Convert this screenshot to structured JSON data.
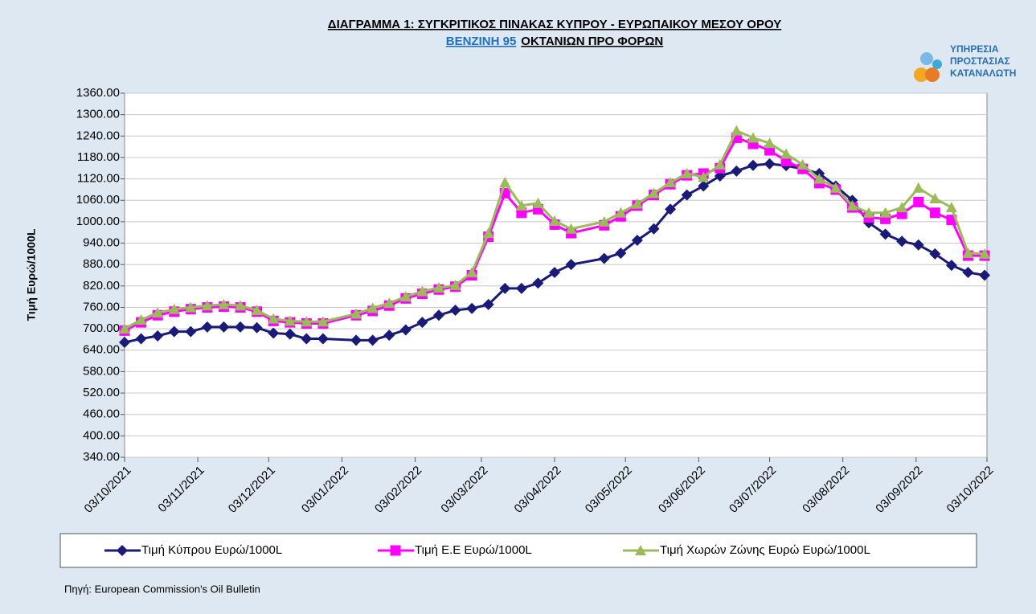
{
  "chart_data": {
    "type": "line",
    "title_line1": "ΔΙΑΓΡΑΜΜΑ 1: ΣΥΓΚΡΙΤΙΚΟΣ ΠΙΝΑΚΑΣ ΚΥΠΡΟΥ - ΕΥΡΩΠΑΙΚΟΥ ΜΕΣΟΥ ΟΡΟΥ",
    "title_line2_highlight": "ΒΕΝΖΙΝΗ 95",
    "title_line2_rest": "ΟΚΤΑΝΙΩΝ ΠΡΟ ΦΟΡΩΝ",
    "logo_text": [
      "ΥΠΗΡΕΣΙΑ",
      "ΠΡΟΣΤΑΣΙΑΣ",
      "ΚΑΤΑΝΑΛΩΤΗ"
    ],
    "y_label": "Τιμή Ευρώ/1000L",
    "source": "Πηγή: European Commission's Oil Bulletin",
    "x": [
      "03/10/2021",
      "10/10/2021",
      "17/10/2021",
      "24/10/2021",
      "31/10/2021",
      "07/11/2021",
      "14/11/2021",
      "21/11/2021",
      "28/11/2021",
      "05/12/2021",
      "12/12/2021",
      "19/12/2021",
      "26/12/2021",
      "09/01/2022",
      "16/01/2022",
      "23/01/2022",
      "30/01/2022",
      "06/02/2022",
      "13/02/2022",
      "20/02/2022",
      "27/02/2022",
      "06/03/2022",
      "13/03/2022",
      "20/03/2022",
      "27/03/2022",
      "03/04/2022",
      "10/04/2022",
      "24/04/2022",
      "01/05/2022",
      "08/05/2022",
      "15/05/2022",
      "22/05/2022",
      "29/05/2022",
      "05/06/2022",
      "12/06/2022",
      "19/06/2022",
      "26/06/2022",
      "03/07/2022",
      "10/07/2022",
      "17/07/2022",
      "24/07/2022",
      "31/07/2022",
      "07/08/2022",
      "14/08/2022",
      "21/08/2022",
      "28/08/2022",
      "04/09/2022",
      "11/09/2022",
      "18/09/2022",
      "25/09/2022",
      "02/10/2022"
    ],
    "series": [
      {
        "name": "Τιμή Κύπρου Ευρώ/1000L",
        "color": "#1a1a78",
        "marker": "diamond",
        "values": [
          662,
          672,
          680,
          692,
          692,
          705,
          705,
          705,
          703,
          688,
          685,
          672,
          672,
          668,
          668,
          682,
          697,
          718,
          738,
          752,
          757,
          768,
          813,
          813,
          828,
          858,
          880,
          897,
          912,
          948,
          980,
          1035,
          1075,
          1100,
          1128,
          1142,
          1158,
          1162,
          1157,
          1148,
          1135,
          1100,
          1060,
          997,
          965,
          945,
          935,
          910,
          878,
          858,
          850
        ]
      },
      {
        "name": "Τιμή Ε.Ε Ευρώ/1000L",
        "color": "#ff00ff",
        "marker": "square",
        "values": [
          695,
          718,
          738,
          748,
          755,
          760,
          762,
          760,
          748,
          722,
          718,
          715,
          715,
          738,
          750,
          765,
          785,
          798,
          810,
          818,
          850,
          958,
          1080,
          1025,
          1035,
          992,
          968,
          990,
          1015,
          1045,
          1075,
          1105,
          1130,
          1135,
          1150,
          1235,
          1218,
          1200,
          1170,
          1148,
          1108,
          1090,
          1040,
          1012,
          1008,
          1022,
          1055,
          1025,
          1005,
          905,
          905
        ]
      },
      {
        "name": "Τιμή Χωρών Ζώνης Ευρώ Ευρώ/1000L",
        "color": "#9bbb59",
        "marker": "triangle",
        "values": [
          700,
          725,
          745,
          755,
          760,
          765,
          768,
          765,
          752,
          728,
          722,
          720,
          720,
          742,
          758,
          772,
          790,
          805,
          815,
          822,
          858,
          968,
          1110,
          1045,
          1052,
          1002,
          980,
          1000,
          1025,
          1050,
          1080,
          1110,
          1135,
          1125,
          1160,
          1255,
          1235,
          1220,
          1190,
          1160,
          1120,
          1095,
          1045,
          1025,
          1025,
          1040,
          1095,
          1065,
          1040,
          912,
          910
        ]
      }
    ],
    "xlim": [
      "03/10/2021",
      "03/10/2022"
    ],
    "xticks": [
      "03/10/2021",
      "03/11/2021",
      "03/12/2021",
      "03/01/2022",
      "03/02/2022",
      "03/03/2022",
      "03/04/2022",
      "03/05/2022",
      "03/06/2022",
      "03/07/2022",
      "03/08/2022",
      "03/09/2022",
      "03/10/2022"
    ],
    "ylim": [
      340,
      1360
    ],
    "yticks": [
      {
        "value": 340,
        "label": "340.00"
      },
      {
        "value": 400,
        "label": "400.00"
      },
      {
        "value": 460,
        "label": "460.00"
      },
      {
        "value": 520,
        "label": "520.00"
      },
      {
        "value": 580,
        "label": "580.00"
      },
      {
        "value": 640,
        "label": "640.00"
      },
      {
        "value": 700,
        "label": "700.00"
      },
      {
        "value": 760,
        "label": "760.00"
      },
      {
        "value": 820,
        "label": "820.00"
      },
      {
        "value": 880,
        "label": "880.00"
      },
      {
        "value": 940,
        "label": "940.00"
      },
      {
        "value": 1000,
        "label": "1000.00"
      },
      {
        "value": 1060,
        "label": "1060.00"
      },
      {
        "value": 1120,
        "label": "1120.00"
      },
      {
        "value": 1180,
        "label": "1180.00"
      },
      {
        "value": 1240,
        "label": "1240.00"
      },
      {
        "value": 1300,
        "label": "1300.00"
      },
      {
        "value": 1360,
        "label": "1360.00"
      }
    ],
    "grid": true,
    "legend": "bottom"
  }
}
